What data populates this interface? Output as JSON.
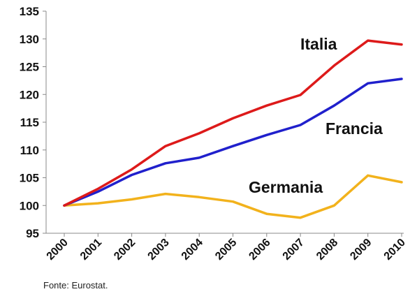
{
  "chart_data": {
    "type": "line",
    "title": "",
    "xlabel": "",
    "ylabel": "",
    "x": [
      "2000",
      "2001",
      "2002",
      "2003",
      "2004",
      "2005",
      "2006",
      "2007",
      "2008",
      "2009",
      "2010"
    ],
    "ylim": [
      95,
      135
    ],
    "yticks": [
      95,
      100,
      105,
      110,
      115,
      120,
      125,
      130,
      135
    ],
    "grid": false,
    "legend": "inline labels",
    "series": [
      {
        "name": "Italia",
        "color": "#dd1a1a",
        "values": [
          100,
          103.0,
          106.5,
          110.7,
          113.0,
          115.7,
          118.0,
          119.9,
          125.2,
          129.7,
          129.0
        ]
      },
      {
        "name": "Francia",
        "color": "#2020cc",
        "values": [
          100,
          102.5,
          105.5,
          107.6,
          108.6,
          110.7,
          112.7,
          114.5,
          118.0,
          122.0,
          122.8
        ]
      },
      {
        "name": "Germania",
        "color": "#f2b21c",
        "values": [
          100,
          100.4,
          101.1,
          102.1,
          101.5,
          100.7,
          98.5,
          97.8,
          100.0,
          105.4,
          104.2
        ]
      }
    ]
  },
  "source_label": "Fonte: Eurostat."
}
